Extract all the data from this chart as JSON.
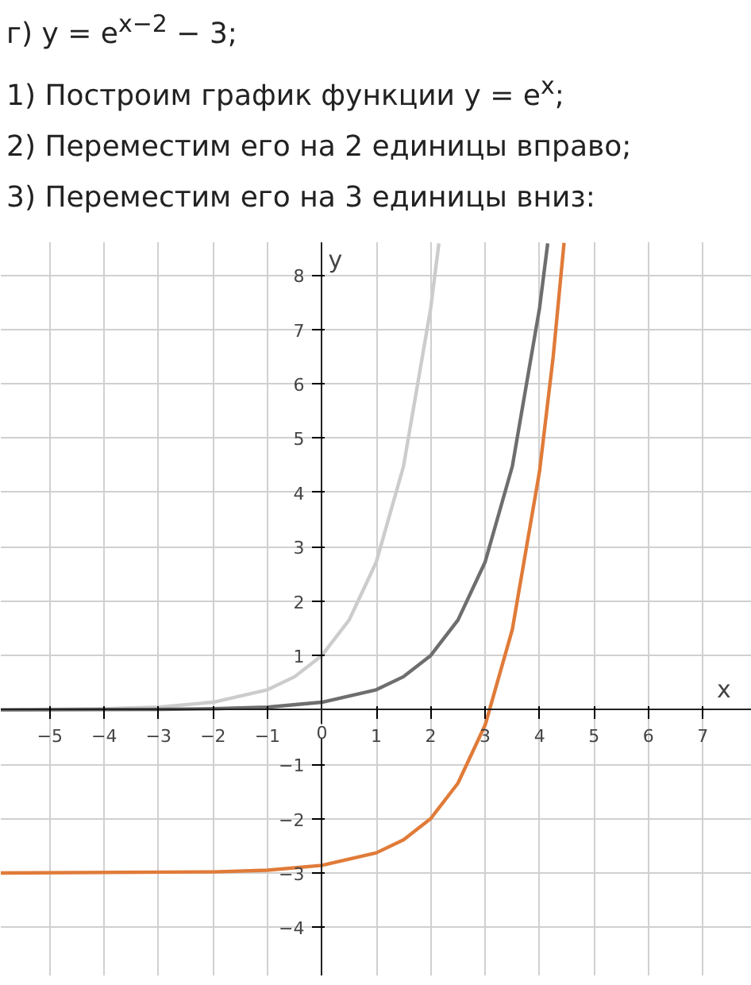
{
  "chart_data": {
    "type": "line",
    "title": "г) y = e$^{x−2}$ − 3;",
    "annotations": [
      "1) Построим график функции y = e$^{x}$;",
      "2) Переместим его на 2 единицы вправо;",
      "3) Переместим его на 3 единицы вниз:"
    ],
    "xlabel": "x",
    "ylabel": "y",
    "series": [
      {
        "color": "#cccccc",
        "x": [
          -5.9,
          -5,
          -4,
          -3,
          -2,
          -1,
          -0.5,
          0,
          0.5,
          1,
          1.5,
          2,
          2.15
        ],
        "values": [
          0,
          0.01,
          0.02,
          0.05,
          0.14,
          0.37,
          0.61,
          1,
          1.65,
          2.72,
          4.48,
          7.39,
          8.58
        ]
      },
      {
        "color": "#6e6e6e",
        "x": [
          -5.9,
          -3,
          -2,
          -1,
          0,
          1,
          1.5,
          2,
          2.5,
          3,
          3.5,
          4,
          4.15
        ],
        "values": [
          0,
          0.01,
          0.02,
          0.05,
          0.14,
          0.37,
          0.61,
          1,
          1.65,
          2.72,
          4.48,
          7.39,
          8.58
        ]
      },
      {
        "color": "#e07b39",
        "x": [
          -5.9,
          -2,
          -1,
          0,
          1,
          1.5,
          2,
          2.5,
          3,
          3.5,
          4,
          4.25,
          4.45
        ],
        "values": [
          -3,
          -2.98,
          -2.95,
          -2.86,
          -2.63,
          -2.39,
          -2,
          -1.35,
          -0.28,
          1.48,
          4.39,
          6.49,
          8.59
        ]
      }
    ],
    "xlim": [
      -5.9,
      7.9
    ],
    "ylim": [
      -4.9,
      8.6
    ],
    "xticks": [
      -5,
      -4,
      -3,
      -2,
      -1,
      0,
      1,
      2,
      3,
      4,
      5,
      6,
      7
    ],
    "yticks": [
      -4,
      -3,
      -2,
      -1,
      1,
      2,
      3,
      4,
      5,
      6,
      7,
      8
    ],
    "grid": true,
    "line_style": "solid"
  }
}
